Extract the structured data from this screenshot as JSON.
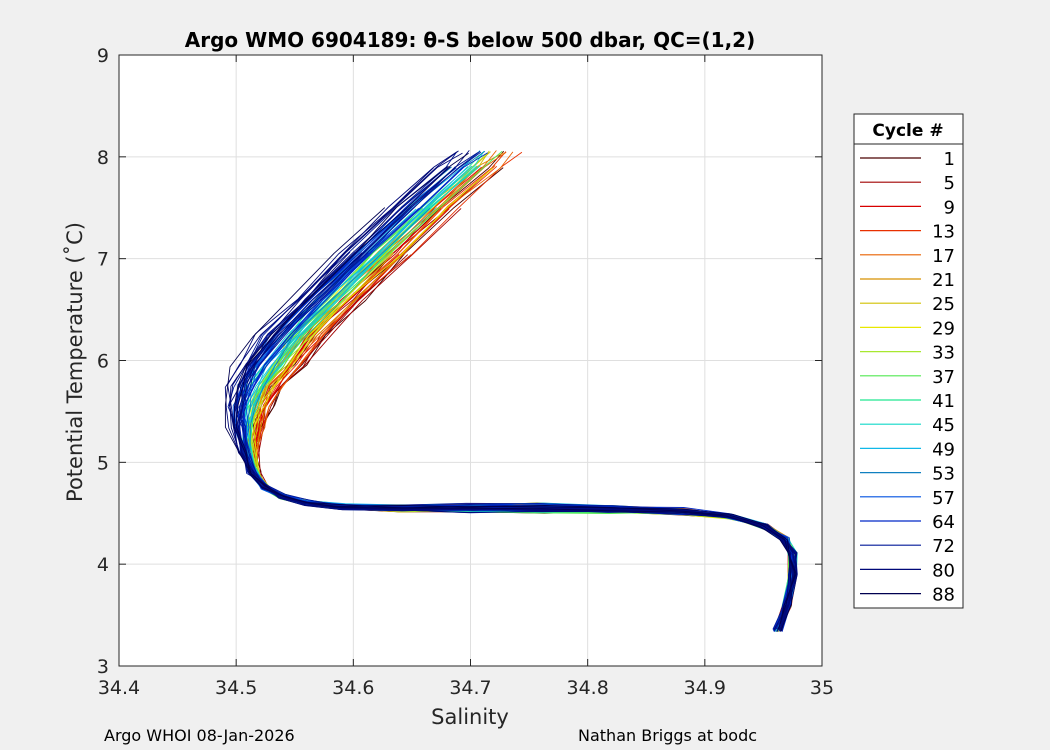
{
  "chart_data": {
    "type": "line",
    "title": "Argo WMO 6904189: θ-S below 500 dbar,  QC=(1,2)",
    "xlabel": "Salinity",
    "ylabel": "Potential Temperature (˚C)",
    "xlim": [
      34.4,
      35
    ],
    "ylim": [
      3,
      9
    ],
    "xticks": [
      "34.4",
      "34.5",
      "34.6",
      "34.7",
      "34.8",
      "34.9",
      "35"
    ],
    "yticks": [
      "3",
      "4",
      "5",
      "6",
      "7",
      "8",
      "9"
    ],
    "grid": true,
    "legend": {
      "title": "Cycle #",
      "placement": "right-outside",
      "entries": [
        {
          "label": "1",
          "color": "#4a0000"
        },
        {
          "label": "5",
          "color": "#a00000"
        },
        {
          "label": "9",
          "color": "#d80000"
        },
        {
          "label": "13",
          "color": "#e83000"
        },
        {
          "label": "17",
          "color": "#e86000"
        },
        {
          "label": "21",
          "color": "#d89000"
        },
        {
          "label": "25",
          "color": "#d0c000"
        },
        {
          "label": "29",
          "color": "#e8e800"
        },
        {
          "label": "33",
          "color": "#a8e830"
        },
        {
          "label": "37",
          "color": "#50e850"
        },
        {
          "label": "41",
          "color": "#20e890"
        },
        {
          "label": "45",
          "color": "#10d8c8"
        },
        {
          "label": "49",
          "color": "#10b8e8"
        },
        {
          "label": "53",
          "color": "#1080c0"
        },
        {
          "label": "57",
          "color": "#0050e0"
        },
        {
          "label": "64",
          "color": "#0028c8"
        },
        {
          "label": "72",
          "color": "#001898"
        },
        {
          "label": "80",
          "color": "#000878"
        },
        {
          "label": "88",
          "color": "#000050"
        }
      ]
    },
    "representative_curve": {
      "salinity": [
        34.962,
        34.97,
        34.975,
        34.975,
        34.968,
        34.95,
        34.92,
        34.88,
        34.82,
        34.76,
        34.7,
        34.64,
        34.59,
        34.56,
        34.54,
        34.525,
        34.515,
        34.51,
        34.51,
        34.512,
        34.518,
        34.53,
        34.55,
        34.58,
        34.62,
        34.66,
        34.7,
        34.715
      ],
      "theta": [
        3.35,
        3.6,
        3.9,
        4.1,
        4.25,
        4.38,
        4.47,
        4.52,
        4.54,
        4.55,
        4.55,
        4.55,
        4.56,
        4.6,
        4.66,
        4.75,
        4.9,
        5.1,
        5.35,
        5.55,
        5.75,
        5.95,
        6.25,
        6.6,
        7.05,
        7.5,
        7.9,
        8.05
      ]
    },
    "footer_left": "Argo WHOI 08-Jan-2026",
    "footer_right": "Nathan Briggs at bodc"
  }
}
